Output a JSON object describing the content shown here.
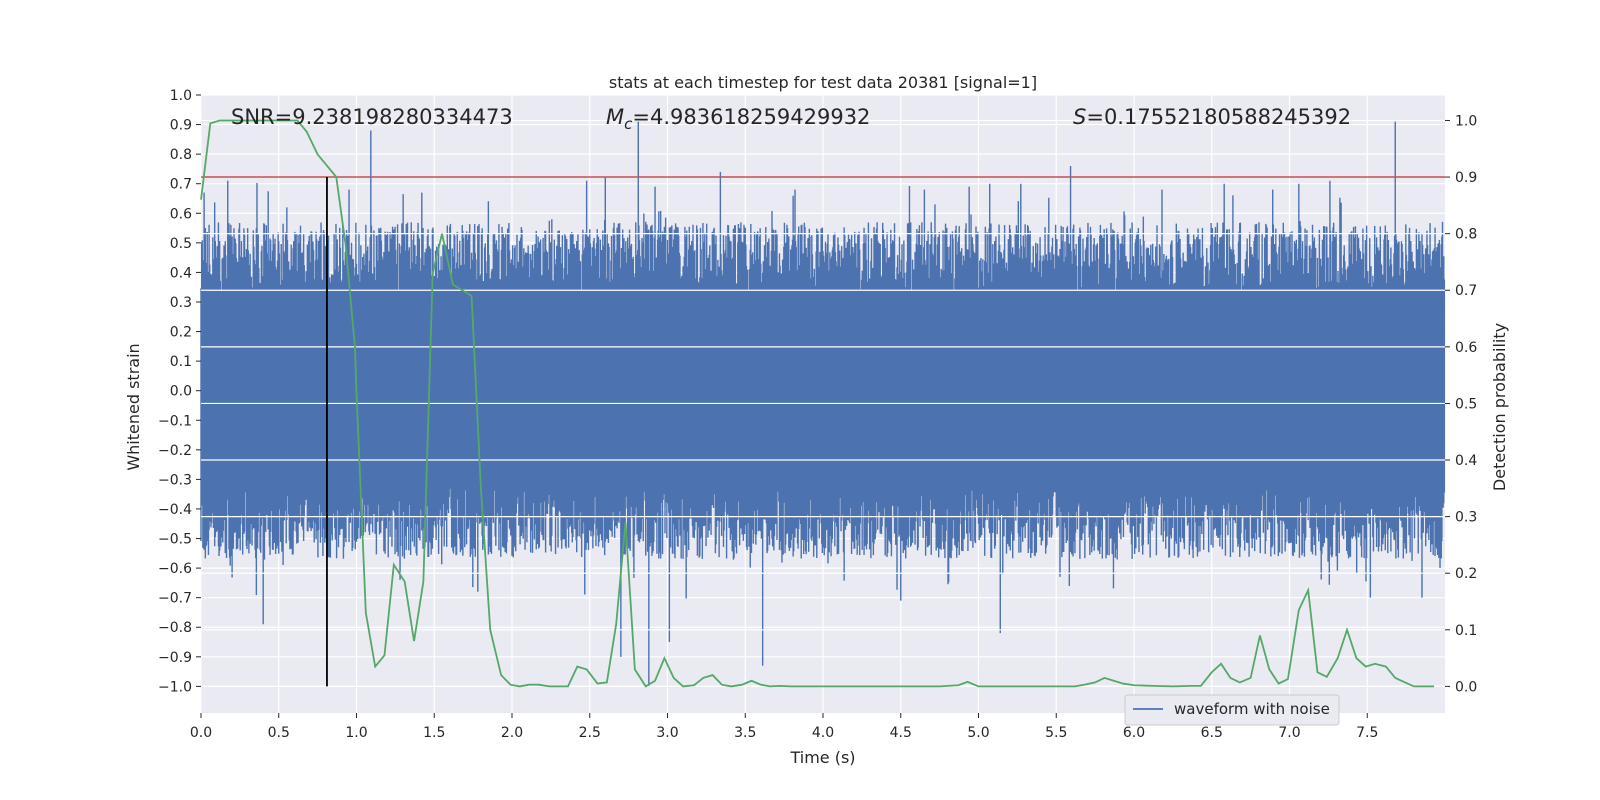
{
  "chart_data": {
    "type": "line",
    "title": "stats at each timestep for test data 20381 [signal=1]",
    "xlabel": "Time (s)",
    "ylabel": "Whitened strain",
    "y2label": "Detection probability",
    "xlim": [
      0.0,
      8.0
    ],
    "ylim": [
      -1.09,
      1.0
    ],
    "y2lim": [
      -0.047,
      1.045
    ],
    "xticks": [
      0.0,
      0.5,
      1.0,
      1.5,
      2.0,
      2.5,
      3.0,
      3.5,
      4.0,
      4.5,
      5.0,
      5.5,
      6.0,
      6.5,
      7.0,
      7.5
    ],
    "xtick_labels": [
      "0.0",
      "0.5",
      "1.0",
      "1.5",
      "2.0",
      "2.5",
      "3.0",
      "3.5",
      "4.0",
      "4.5",
      "5.0",
      "5.5",
      "6.0",
      "6.5",
      "7.0",
      "7.5"
    ],
    "yticks": [
      1.0,
      0.9,
      0.8,
      0.7,
      0.6,
      0.5,
      0.4,
      0.3,
      0.2,
      0.1,
      0.0,
      -0.1,
      -0.2,
      -0.3,
      -0.4,
      -0.5,
      -0.6,
      -0.7,
      -0.8,
      -0.9,
      -1.0
    ],
    "ytick_labels": [
      "1.0",
      "0.9",
      "0.8",
      "0.7",
      "0.6",
      "0.5",
      "0.4",
      "0.3",
      "0.2",
      "0.1",
      "0.0",
      "−0.1",
      "−0.2",
      "−0.3",
      "−0.4",
      "−0.5",
      "−0.6",
      "−0.7",
      "−0.8",
      "−0.9",
      "−1.0"
    ],
    "y2ticks": [
      1.0,
      0.9,
      0.8,
      0.7,
      0.6,
      0.5,
      0.4,
      0.3,
      0.2,
      0.1,
      0.0
    ],
    "y2tick_labels": [
      "1.0",
      "0.9",
      "0.8",
      "0.7",
      "0.6",
      "0.5",
      "0.4",
      "0.3",
      "0.2",
      "0.1",
      "0.0"
    ],
    "annotations": {
      "snr": "SNR=9.238198280334473",
      "mc_symbol": "M",
      "mc_sub": "c",
      "mc_value": "=4.983618259429932",
      "s_symbol": "S",
      "s_value": "=0.17552180588245392"
    },
    "legend": {
      "label": "waveform with noise",
      "placement": "lower-right"
    },
    "threshold": {
      "value": 0.9,
      "axis": "y2",
      "color": "#c44e52"
    },
    "marker_line": {
      "x": 0.81,
      "y_from": -1.0,
      "y_to": 0.9,
      "color": "#000000"
    },
    "series": [
      {
        "name": "waveform with noise",
        "axis": "y1",
        "color": "#4c72b0",
        "sample_rate": 250,
        "duration": 8.0,
        "envelope_mid": 0.45,
        "envelope_spread": 0.12,
        "spikes": [
          {
            "t": 0.02,
            "v": 0.67
          },
          {
            "t": 0.17,
            "v": 0.71
          },
          {
            "t": 0.4,
            "v": -0.79
          },
          {
            "t": 0.55,
            "v": 0.62
          },
          {
            "t": 0.95,
            "v": 0.68
          },
          {
            "t": 1.09,
            "v": 0.88
          },
          {
            "t": 1.42,
            "v": 0.67
          },
          {
            "t": 1.78,
            "v": -0.68
          },
          {
            "t": 2.48,
            "v": 0.71
          },
          {
            "t": 2.6,
            "v": 0.72
          },
          {
            "t": 2.7,
            "v": -0.9
          },
          {
            "t": 2.81,
            "v": 0.91
          },
          {
            "t": 2.88,
            "v": -1.0
          },
          {
            "t": 2.92,
            "v": 0.69
          },
          {
            "t": 3.01,
            "v": -0.85
          },
          {
            "t": 3.34,
            "v": 0.74
          },
          {
            "t": 3.61,
            "v": -0.93
          },
          {
            "t": 3.82,
            "v": 0.68
          },
          {
            "t": 4.65,
            "v": 0.68
          },
          {
            "t": 4.72,
            "v": 0.63
          },
          {
            "t": 4.94,
            "v": 0.69
          },
          {
            "t": 5.07,
            "v": 0.7
          },
          {
            "t": 5.14,
            "v": -0.82
          },
          {
            "t": 5.27,
            "v": 0.7
          },
          {
            "t": 5.59,
            "v": 0.76
          },
          {
            "t": 6.18,
            "v": 0.68
          },
          {
            "t": 6.58,
            "v": 0.7
          },
          {
            "t": 6.89,
            "v": 0.68
          },
          {
            "t": 7.06,
            "v": 0.7
          },
          {
            "t": 7.26,
            "v": 0.71
          },
          {
            "t": 7.52,
            "v": -0.7
          },
          {
            "t": 7.68,
            "v": 0.91
          },
          {
            "t": 7.85,
            "v": -0.7
          }
        ]
      },
      {
        "name": "detection probability",
        "axis": "y2",
        "color": "#55a868",
        "x": [
          0.0,
          0.06,
          0.12,
          0.25,
          0.37,
          0.5,
          0.62,
          0.68,
          0.75,
          0.81,
          0.87,
          0.93,
          0.99,
          1.0,
          1.06,
          1.12,
          1.18,
          1.24,
          1.31,
          1.37,
          1.43,
          1.49,
          1.55,
          1.62,
          1.68,
          1.74,
          1.8,
          1.86,
          1.93,
          1.99,
          2.05,
          2.11,
          2.17,
          2.24,
          2.3,
          2.36,
          2.42,
          2.48,
          2.55,
          2.61,
          2.67,
          2.73,
          2.79,
          2.86,
          2.92,
          2.98,
          3.04,
          3.1,
          3.17,
          3.23,
          3.29,
          3.35,
          3.41,
          3.48,
          3.54,
          3.6,
          3.66,
          3.72,
          3.79,
          3.85,
          3.91,
          3.97,
          4.1,
          4.3,
          4.5,
          4.62,
          4.75,
          4.87,
          4.93,
          5.0,
          5.12,
          5.25,
          5.37,
          5.5,
          5.62,
          5.68,
          5.75,
          5.81,
          5.87,
          5.93,
          6.0,
          6.12,
          6.25,
          6.37,
          6.43,
          6.5,
          6.56,
          6.62,
          6.68,
          6.75,
          6.81,
          6.87,
          6.93,
          6.99,
          7.06,
          7.12,
          7.18,
          7.24,
          7.31,
          7.37,
          7.43,
          7.49,
          7.55,
          7.62,
          7.68,
          7.8,
          7.93
        ],
        "values": [
          0.86,
          0.995,
          1.0,
          1.0,
          1.0,
          1.0,
          1.0,
          0.98,
          0.94,
          0.92,
          0.9,
          0.78,
          0.6,
          0.52,
          0.13,
          0.035,
          0.055,
          0.215,
          0.185,
          0.08,
          0.185,
          0.73,
          0.8,
          0.71,
          0.7,
          0.69,
          0.35,
          0.1,
          0.02,
          0.003,
          0.0,
          0.003,
          0.003,
          0.0,
          0.0,
          0.0,
          0.035,
          0.03,
          0.005,
          0.007,
          0.11,
          0.29,
          0.03,
          0.0,
          0.01,
          0.05,
          0.015,
          0.0,
          0.002,
          0.015,
          0.02,
          0.003,
          0.0,
          0.003,
          0.01,
          0.003,
          0.0,
          0.001,
          0.0,
          0.0,
          0.0,
          0.0,
          0.0,
          0.0,
          0.0,
          0.0,
          0.0,
          0.002,
          0.008,
          0.0,
          0.0,
          0.0,
          0.0,
          0.0,
          0.0,
          0.003,
          0.007,
          0.015,
          0.01,
          0.005,
          0.002,
          0.001,
          0.0,
          0.001,
          0.001,
          0.025,
          0.04,
          0.015,
          0.007,
          0.015,
          0.09,
          0.03,
          0.005,
          0.013,
          0.135,
          0.17,
          0.025,
          0.017,
          0.05,
          0.1,
          0.05,
          0.035,
          0.04,
          0.035,
          0.015,
          0.0,
          0.0
        ]
      }
    ]
  }
}
